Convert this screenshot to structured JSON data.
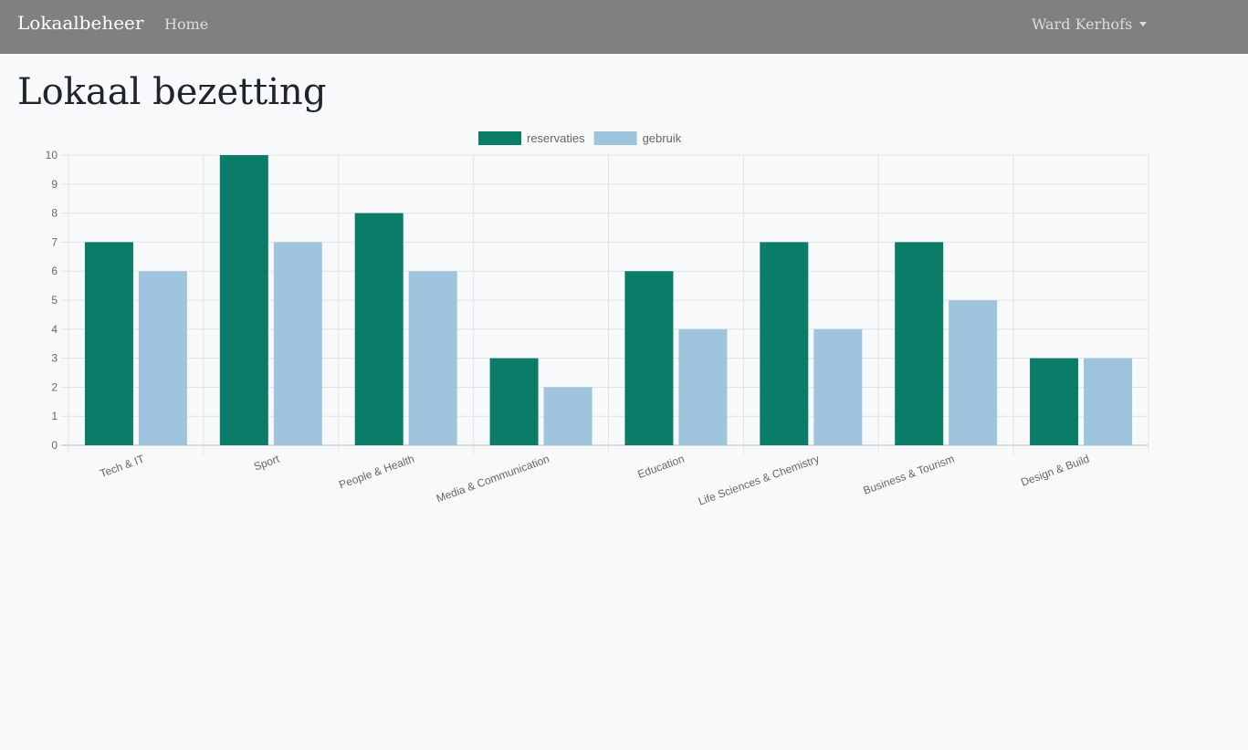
{
  "navbar": {
    "brand": "Lokaalbeheer",
    "home_label": "Home",
    "user_label": "Ward Kerhofs"
  },
  "page": {
    "title": "Lokaal bezetting"
  },
  "colors": {
    "navbar_bg": "#808080",
    "reservaties": "#0a7c68",
    "gebruik": "#9fc5de"
  },
  "chart_data": {
    "type": "bar",
    "categories": [
      "Tech & IT",
      "Sport",
      "People & Health",
      "Media & Communication",
      "Education",
      "Life Sciences & Chemistry",
      "Business & Tourism",
      "Design & Build"
    ],
    "series": [
      {
        "name": "reservaties",
        "values": [
          7,
          10,
          8,
          3,
          6,
          7,
          7,
          3
        ],
        "color": "#0a7c68"
      },
      {
        "name": "gebruik",
        "values": [
          6,
          7,
          6,
          2,
          4,
          4,
          5,
          3
        ],
        "color": "#9fc5de"
      }
    ],
    "ylim": [
      0,
      10
    ],
    "yticks": [
      "0",
      "1",
      "2",
      "3",
      "4",
      "5",
      "6",
      "7",
      "8",
      "9",
      "10"
    ],
    "grid": true,
    "legend": "top-center",
    "title": "",
    "xlabel": "",
    "ylabel": ""
  }
}
